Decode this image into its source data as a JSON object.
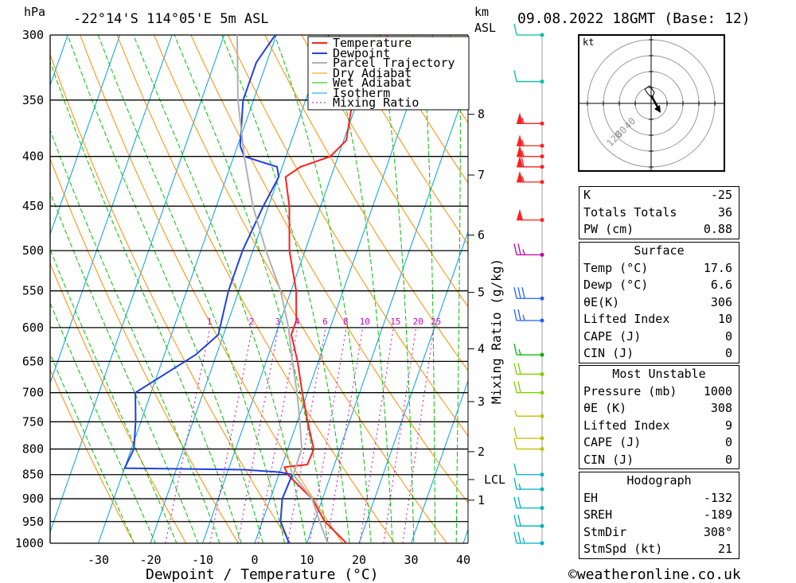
{
  "header": {
    "pressure_unit": "hPa",
    "location": "-22°14'S  114°05'E  5m  ASL",
    "height_unit_line1": "km",
    "height_unit_line2": "ASL",
    "datetime": "09.08.2022  18GMT  (Base: 12)"
  },
  "footer": {
    "copyright": "©weatheronline.co.uk"
  },
  "colors": {
    "temperature": "#ff2020",
    "dewpoint": "#2040e0",
    "parcel": "#b0b0b0",
    "dry_adiabat": "#ff8c00",
    "wet_adiabat": "#00c000",
    "isotherm": "#00a0e0",
    "mixing_ratio": "#cc00cc"
  },
  "chart_data": {
    "type": "line",
    "title": "-22°14'S  114°05'E  5m  ASL",
    "xlabel": "Dewpoint / Temperature (°C)",
    "ylabel": "hPa",
    "right_axis_label": "Mixing Ratio (g/kg)",
    "x_ticks": [
      -30,
      -20,
      -10,
      0,
      10,
      20,
      30,
      40
    ],
    "pressure_levels": [
      300,
      350,
      400,
      450,
      500,
      550,
      600,
      650,
      700,
      750,
      800,
      850,
      900,
      950,
      1000
    ],
    "height_km_labels": [
      {
        "km": "8",
        "p": 362
      },
      {
        "km": "7",
        "p": 418
      },
      {
        "km": "6",
        "p": 482
      },
      {
        "km": "5",
        "p": 552
      },
      {
        "km": "4",
        "p": 631
      },
      {
        "km": "3",
        "p": 715
      },
      {
        "km": "2",
        "p": 805
      },
      {
        "km": "LCL",
        "p": 860
      },
      {
        "km": "1",
        "p": 903
      }
    ],
    "mixing_ratio_labels": [
      "1",
      "2",
      "3",
      "4",
      "6",
      "8",
      "10",
      "15",
      "20",
      "25"
    ],
    "legend": [
      "Temperature",
      "Dewpoint",
      "Parcel Trajectory",
      "Dry Adiabat",
      "Wet Adiabat",
      "Isotherm",
      "Mixing Ratio"
    ],
    "legend_position": "top-right",
    "series": [
      {
        "name": "Temperature",
        "points": [
          [
            -8.7,
            300
          ],
          [
            -11,
            350
          ],
          [
            -9.5,
            385
          ],
          [
            -11.5,
            400
          ],
          [
            -16.5,
            410
          ],
          [
            -18.7,
            420
          ],
          [
            -16,
            450
          ],
          [
            -13,
            500
          ],
          [
            -9,
            550
          ],
          [
            -7,
            590
          ],
          [
            -7,
            610
          ],
          [
            -4,
            650
          ],
          [
            -1,
            700
          ],
          [
            2,
            750
          ],
          [
            5,
            800
          ],
          [
            4.8,
            830
          ],
          [
            0.6,
            835
          ],
          [
            1.7,
            850
          ],
          [
            8,
            900
          ],
          [
            12,
            950
          ],
          [
            17.6,
            1000
          ]
        ]
      },
      {
        "name": "Dewpoint",
        "points": [
          [
            -30.2,
            300
          ],
          [
            -32,
            320
          ],
          [
            -32,
            350
          ],
          [
            -29.5,
            390
          ],
          [
            -28,
            400
          ],
          [
            -21,
            410
          ],
          [
            -20,
            420
          ],
          [
            -21,
            450
          ],
          [
            -22,
            500
          ],
          [
            -22,
            550
          ],
          [
            -21,
            610
          ],
          [
            -24,
            640
          ],
          [
            -33,
            700
          ],
          [
            -31,
            750
          ],
          [
            -29.5,
            800
          ],
          [
            -30,
            837
          ],
          [
            -7,
            840
          ],
          [
            0,
            845
          ],
          [
            2.6,
            850
          ],
          [
            2.3,
            900
          ],
          [
            3.5,
            950
          ],
          [
            6.6,
            1000
          ]
        ]
      },
      {
        "name": "Parcel Trajectory",
        "points": [
          [
            -37.5,
            300
          ],
          [
            -33,
            350
          ],
          [
            -28,
            400
          ],
          [
            -23,
            450
          ],
          [
            -17.5,
            500
          ],
          [
            -12,
            550
          ],
          [
            -8,
            600
          ],
          [
            -5,
            650
          ],
          [
            -2,
            700
          ],
          [
            0.5,
            750
          ],
          [
            2.7,
            800
          ],
          [
            2.8,
            850
          ],
          [
            8,
            900
          ],
          [
            11,
            950
          ],
          [
            14,
            1000
          ]
        ]
      }
    ],
    "winds_kt": [
      {
        "p": 300,
        "barbs": "10"
      },
      {
        "p": 335,
        "barbs": "10"
      },
      {
        "p": 370,
        "barbs": "55"
      },
      {
        "p": 390,
        "barbs": "55"
      },
      {
        "p": 400,
        "barbs": "55"
      },
      {
        "p": 410,
        "barbs": "60"
      },
      {
        "p": 425,
        "barbs": "55"
      },
      {
        "p": 465,
        "barbs": "50"
      },
      {
        "p": 505,
        "barbs": "25"
      },
      {
        "p": 560,
        "barbs": "30"
      },
      {
        "p": 590,
        "barbs": "25"
      },
      {
        "p": 640,
        "barbs": "15"
      },
      {
        "p": 670,
        "barbs": "20"
      },
      {
        "p": 700,
        "barbs": "20"
      },
      {
        "p": 740,
        "barbs": "5"
      },
      {
        "p": 780,
        "barbs": "10"
      },
      {
        "p": 800,
        "barbs": "10"
      },
      {
        "p": 850,
        "barbs": "10"
      },
      {
        "p": 880,
        "barbs": "15"
      },
      {
        "p": 920,
        "barbs": "20"
      },
      {
        "p": 960,
        "barbs": "20"
      },
      {
        "p": 1000,
        "barbs": "25"
      }
    ]
  },
  "hodograph": {
    "unit": "kt",
    "ring_labels": [
      "40",
      "80",
      "120"
    ]
  },
  "indices": {
    "basic": [
      {
        "label": "K",
        "value": "-25"
      },
      {
        "label": "Totals Totals",
        "value": "36"
      },
      {
        "label": "PW (cm)",
        "value": "0.88"
      }
    ],
    "surface": {
      "title": "Surface",
      "rows": [
        {
          "label": "Temp (°C)",
          "value": "17.6"
        },
        {
          "label": "Dewp (°C)",
          "value": "6.6"
        },
        {
          "label": "θE(K)",
          "value": "306"
        },
        {
          "label": "Lifted Index",
          "value": "10"
        },
        {
          "label": "CAPE (J)",
          "value": "0"
        },
        {
          "label": "CIN (J)",
          "value": "0"
        }
      ]
    },
    "most_unstable": {
      "title": "Most Unstable",
      "rows": [
        {
          "label": "Pressure (mb)",
          "value": "1000"
        },
        {
          "label": "θE (K)",
          "value": "308"
        },
        {
          "label": "Lifted Index",
          "value": "9"
        },
        {
          "label": "CAPE (J)",
          "value": "0"
        },
        {
          "label": "CIN (J)",
          "value": "0"
        }
      ]
    },
    "hodograph": {
      "title": "Hodograph",
      "rows": [
        {
          "label": "EH",
          "value": "-132"
        },
        {
          "label": "SREH",
          "value": "-189"
        },
        {
          "label": "StmDir",
          "value": "308°"
        },
        {
          "label": "StmSpd (kt)",
          "value": "21"
        }
      ]
    }
  }
}
